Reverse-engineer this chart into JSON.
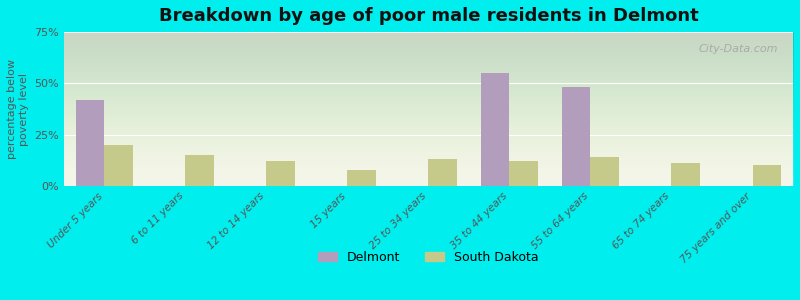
{
  "title": "Breakdown by age of poor male residents in Delmont",
  "ylabel": "percentage below\npoverty level",
  "categories": [
    "Under 5 years",
    "6 to 11 years",
    "12 to 14 years",
    "15 years",
    "25 to 34 years",
    "35 to 44 years",
    "55 to 64 years",
    "65 to 74 years",
    "75 years and over"
  ],
  "delmont": [
    42,
    0,
    0,
    0,
    0,
    55,
    48,
    0,
    0
  ],
  "south_dakota": [
    20,
    15,
    12,
    8,
    13,
    12,
    14,
    11,
    10
  ],
  "delmont_color": "#b39dbd",
  "sd_color": "#c5c98a",
  "background_color": "#00eeee",
  "plot_bg_bottom": "#f5f5e8",
  "ylim": [
    0,
    75
  ],
  "yticks": [
    0,
    25,
    50,
    75
  ],
  "ytick_labels": [
    "0%",
    "25%",
    "50%",
    "75%"
  ],
  "bar_width": 0.35,
  "title_fontsize": 13,
  "legend_delmont": "Delmont",
  "legend_sd": "South Dakota"
}
